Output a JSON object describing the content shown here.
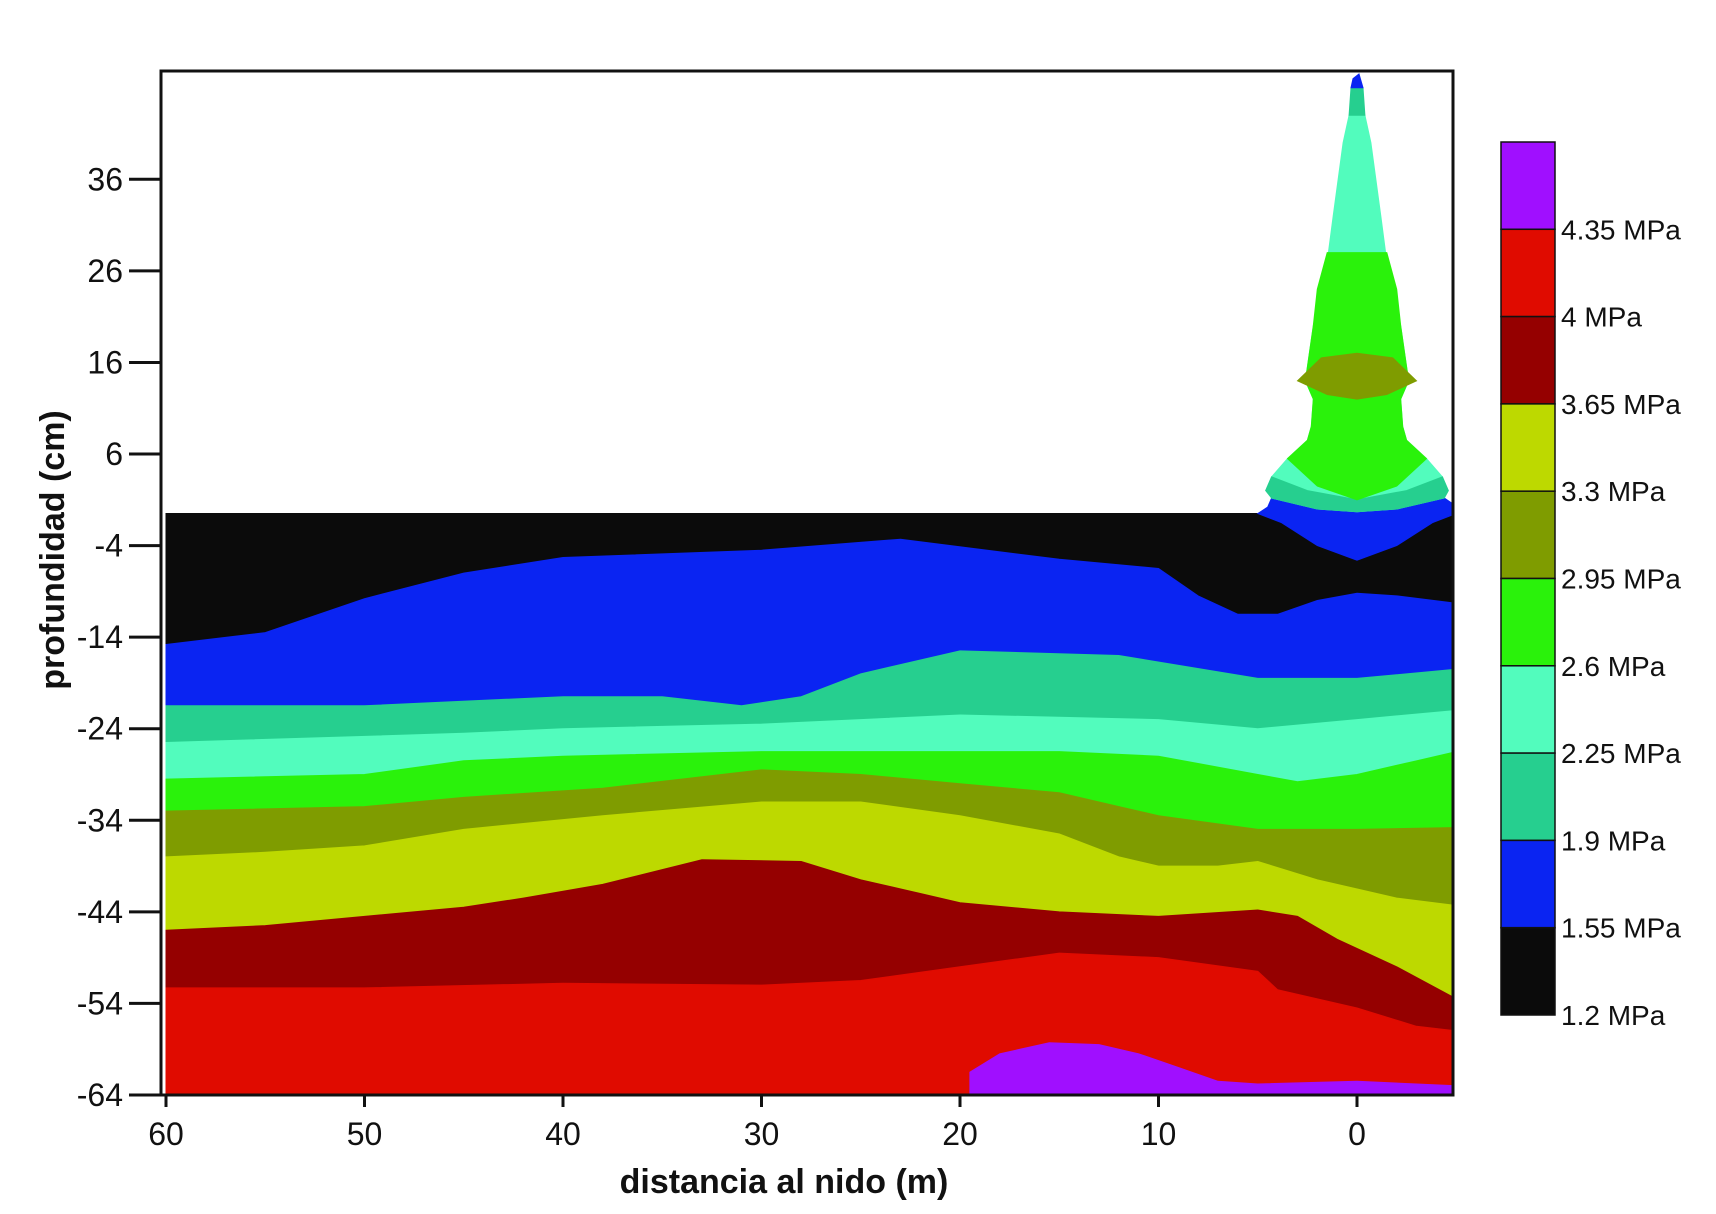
{
  "chart_data": {
    "type": "heatmap",
    "subtype": "filled-contour",
    "title": "",
    "xlabel": "distancia al nido (m)",
    "ylabel": "profundidad (cm)",
    "xlim": [
      60,
      -5
    ],
    "ylim": [
      -64,
      48
    ],
    "x_ticks": [
      60,
      50,
      40,
      30,
      20,
      10,
      0
    ],
    "y_ticks": [
      36,
      26,
      16,
      6,
      -4,
      -14,
      -24,
      -34,
      -44,
      -54,
      -64
    ],
    "legend": {
      "position": "right",
      "levels": [
        {
          "label": "1.2 MPa",
          "color": "#0b0b0b"
        },
        {
          "label": "1.55 MPa",
          "color": "#0a24f2"
        },
        {
          "label": "1.9 MPa",
          "color": "#26cf8f"
        },
        {
          "label": "2.25 MPa",
          "color": "#52fcbd"
        },
        {
          "label": "2.6 MPa",
          "color": "#2af20b"
        },
        {
          "label": "2.95 MPa",
          "color": "#7f9c00"
        },
        {
          "label": "3.3 MPa",
          "color": "#bdd900"
        },
        {
          "label": "3.65 MPa",
          "color": "#950000"
        },
        {
          "label": "4 MPa",
          "color": "#e00b00"
        },
        {
          "label": "4.35 MPa",
          "color": "#a00fff"
        }
      ]
    },
    "regions": [
      {
        "level": 0,
        "points": [
          [
            60,
            -0.5
          ],
          [
            -5,
            -0.5
          ],
          [
            -5,
            -64
          ],
          [
            60,
            -64
          ]
        ]
      },
      {
        "level": 1,
        "points": [
          [
            60,
            -14.8
          ],
          [
            55,
            -13.5
          ],
          [
            50,
            -9.8
          ],
          [
            45,
            -7
          ],
          [
            40,
            -5.3
          ],
          [
            30,
            -4.5
          ],
          [
            23,
            -3.3
          ],
          [
            15,
            -5.5
          ],
          [
            10,
            -6.5
          ],
          [
            8,
            -9.5
          ],
          [
            6,
            -11.5
          ],
          [
            4,
            -11.5
          ],
          [
            2,
            -10
          ],
          [
            0,
            -9.2
          ],
          [
            -2,
            -9.5
          ],
          [
            -5,
            -10.3
          ],
          [
            -5,
            -64
          ],
          [
            60,
            -64
          ]
        ]
      },
      {
        "level": 2,
        "points": [
          [
            60,
            -21.5
          ],
          [
            50,
            -21.5
          ],
          [
            40,
            -20.5
          ],
          [
            35,
            -20.5
          ],
          [
            31,
            -21.5
          ],
          [
            28,
            -20.5
          ],
          [
            25,
            -18
          ],
          [
            20,
            -15.5
          ],
          [
            12,
            -16
          ],
          [
            5,
            -18.5
          ],
          [
            0,
            -18.5
          ],
          [
            -5,
            -17.5
          ],
          [
            -5,
            -64
          ],
          [
            60,
            -64
          ]
        ]
      },
      {
        "level": 3,
        "points": [
          [
            60,
            -25.5
          ],
          [
            45,
            -24.5
          ],
          [
            40,
            -24
          ],
          [
            30,
            -23.5
          ],
          [
            25,
            -23
          ],
          [
            20,
            -22.5
          ],
          [
            10,
            -23
          ],
          [
            5,
            -24
          ],
          [
            0,
            -23
          ],
          [
            -5,
            -22
          ],
          [
            -5,
            -64
          ],
          [
            60,
            -64
          ]
        ]
      },
      {
        "level": 4,
        "points": [
          [
            60,
            -29.5
          ],
          [
            50,
            -29
          ],
          [
            45,
            -27.5
          ],
          [
            40,
            -27
          ],
          [
            30,
            -26.5
          ],
          [
            20,
            -26.5
          ],
          [
            15,
            -26.5
          ],
          [
            10,
            -27
          ],
          [
            5,
            -29
          ],
          [
            3,
            -29.8
          ],
          [
            0,
            -29
          ],
          [
            -3,
            -27.5
          ],
          [
            -5,
            -26.5
          ],
          [
            -5,
            -64
          ],
          [
            60,
            -64
          ]
        ]
      },
      {
        "level": 5,
        "points": [
          [
            60,
            -33
          ],
          [
            50,
            -32.5
          ],
          [
            45,
            -31.5
          ],
          [
            38,
            -30.5
          ],
          [
            30,
            -28.5
          ],
          [
            25,
            -29
          ],
          [
            20,
            -30
          ],
          [
            15,
            -31
          ],
          [
            12,
            -32.5
          ],
          [
            10,
            -33.5
          ],
          [
            5,
            -35
          ],
          [
            0,
            -35
          ],
          [
            -5,
            -34.8
          ],
          [
            -5,
            -64
          ],
          [
            60,
            -64
          ]
        ]
      },
      {
        "level": 6,
        "points": [
          [
            60,
            -38
          ],
          [
            55,
            -37.5
          ],
          [
            50,
            -36.8
          ],
          [
            45,
            -35
          ],
          [
            38,
            -33.5
          ],
          [
            30,
            -32
          ],
          [
            25,
            -32
          ],
          [
            20,
            -33.5
          ],
          [
            15,
            -35.5
          ],
          [
            12,
            -38
          ],
          [
            10,
            -39
          ],
          [
            7,
            -39
          ],
          [
            5,
            -38.5
          ],
          [
            2,
            -40.5
          ],
          [
            -2,
            -42.5
          ],
          [
            -5,
            -43.3
          ],
          [
            -5,
            -64
          ],
          [
            60,
            -64
          ]
        ]
      },
      {
        "level": 7,
        "points": [
          [
            60,
            -46
          ],
          [
            55,
            -45.5
          ],
          [
            50,
            -44.5
          ],
          [
            45,
            -43.5
          ],
          [
            42,
            -42.5
          ],
          [
            38,
            -41
          ],
          [
            33,
            -38.3
          ],
          [
            28,
            -38.5
          ],
          [
            25,
            -40.5
          ],
          [
            22,
            -42
          ],
          [
            20,
            -43
          ],
          [
            15,
            -44
          ],
          [
            10,
            -44.5
          ],
          [
            5,
            -43.8
          ],
          [
            3,
            -44.5
          ],
          [
            1,
            -47
          ],
          [
            -2,
            -50
          ],
          [
            -5,
            -53.5
          ],
          [
            -5,
            -64
          ],
          [
            60,
            -64
          ]
        ]
      },
      {
        "level": 8,
        "points": [
          [
            60,
            -52.3
          ],
          [
            50,
            -52.3
          ],
          [
            40,
            -51.8
          ],
          [
            30,
            -52
          ],
          [
            25,
            -51.5
          ],
          [
            20,
            -50
          ],
          [
            15,
            -48.5
          ],
          [
            10,
            -49
          ],
          [
            5,
            -50.5
          ],
          [
            4,
            -52.5
          ],
          [
            0,
            -54.5
          ],
          [
            -3,
            -56.5
          ],
          [
            -5,
            -57
          ],
          [
            -5,
            -64
          ],
          [
            60,
            -64
          ]
        ]
      },
      {
        "level": 9,
        "points": [
          [
            19.5,
            -64
          ],
          [
            19.5,
            -61.5
          ],
          [
            18,
            -59.5
          ],
          [
            15.5,
            -58.3
          ],
          [
            13,
            -58.5
          ],
          [
            11,
            -59.5
          ],
          [
            9,
            -61
          ],
          [
            7,
            -62.5
          ],
          [
            5,
            -62.8
          ],
          [
            0,
            -62.5
          ],
          [
            -5,
            -63
          ],
          [
            -5,
            -64
          ]
        ]
      },
      {
        "level": 1,
        "points": [
          [
            5,
            -0.5
          ],
          [
            4.5,
            0.2
          ],
          [
            4.3,
            1.2
          ],
          [
            2,
            0
          ],
          [
            0,
            -0.3
          ],
          [
            -2,
            0
          ],
          [
            -4.4,
            1.2
          ],
          [
            -5,
            0.3
          ],
          [
            -5,
            -0.5
          ],
          [
            -3.8,
            -1.5
          ],
          [
            -2,
            -4
          ],
          [
            0,
            -5.6
          ],
          [
            2,
            -4
          ],
          [
            3.8,
            -1.5
          ]
        ]
      },
      {
        "level": 3,
        "points": [
          [
            4.3,
            1.2
          ],
          [
            4.6,
            2
          ],
          [
            4.3,
            3.5
          ],
          [
            3.5,
            5.5
          ],
          [
            2.5,
            7.5
          ],
          [
            2.3,
            9
          ],
          [
            2.2,
            12
          ],
          [
            2.6,
            14
          ],
          [
            2.2,
            20
          ],
          [
            1.5,
            27
          ],
          [
            1.2,
            32
          ],
          [
            0.7,
            40
          ],
          [
            0.4,
            43
          ],
          [
            -0.4,
            43
          ],
          [
            -0.7,
            40
          ],
          [
            -1.2,
            32
          ],
          [
            -1.5,
            27
          ],
          [
            -2.2,
            20
          ],
          [
            -2.6,
            14
          ],
          [
            -2.2,
            12
          ],
          [
            -2.3,
            9
          ],
          [
            -2.5,
            7.5
          ],
          [
            -3.5,
            5.5
          ],
          [
            -4.3,
            3.5
          ],
          [
            -4.6,
            2
          ],
          [
            -4.4,
            1.2
          ],
          [
            -2,
            0
          ],
          [
            0,
            -0.3
          ],
          [
            2,
            0
          ]
        ]
      },
      {
        "level": 2,
        "points": [
          [
            4.3,
            3.5
          ],
          [
            2.5,
            2
          ],
          [
            0,
            1
          ],
          [
            -2.5,
            2
          ],
          [
            -4.3,
            3.5
          ],
          [
            -4.6,
            2
          ],
          [
            -4.4,
            1.2
          ],
          [
            -2,
            0
          ],
          [
            0,
            -0.3
          ],
          [
            2,
            0
          ],
          [
            4.3,
            1.2
          ],
          [
            4.6,
            2
          ]
        ]
      },
      {
        "level": 4,
        "points": [
          [
            2.6,
            14
          ],
          [
            2.2,
            20
          ],
          [
            2,
            24
          ],
          [
            1.5,
            28
          ],
          [
            -1.5,
            28
          ],
          [
            -2,
            24
          ],
          [
            -2.2,
            20
          ],
          [
            -2.6,
            14
          ],
          [
            -2.2,
            12
          ],
          [
            -2.3,
            9
          ],
          [
            -2.5,
            7.5
          ],
          [
            -3.5,
            5.5
          ],
          [
            -2,
            2.5
          ],
          [
            0,
            1
          ],
          [
            2,
            2.5
          ],
          [
            3.5,
            5.5
          ],
          [
            2.5,
            7.5
          ],
          [
            2.3,
            9
          ],
          [
            2.2,
            12
          ]
        ]
      },
      {
        "level": 5,
        "points": [
          [
            3,
            14
          ],
          [
            1.5,
            12.5
          ],
          [
            0,
            12
          ],
          [
            -1.5,
            12.5
          ],
          [
            -3,
            14
          ],
          [
            -1.8,
            16.5
          ],
          [
            0,
            17
          ],
          [
            1.8,
            16.5
          ]
        ]
      },
      {
        "level": 2,
        "points": [
          [
            0.4,
            43
          ],
          [
            0.3,
            46
          ],
          [
            -0.3,
            46
          ],
          [
            -0.4,
            43
          ]
        ]
      },
      {
        "level": 1,
        "points": [
          [
            0.3,
            46
          ],
          [
            0.2,
            47
          ],
          [
            -0.1,
            47.5
          ],
          [
            -0.3,
            46
          ]
        ]
      }
    ]
  }
}
